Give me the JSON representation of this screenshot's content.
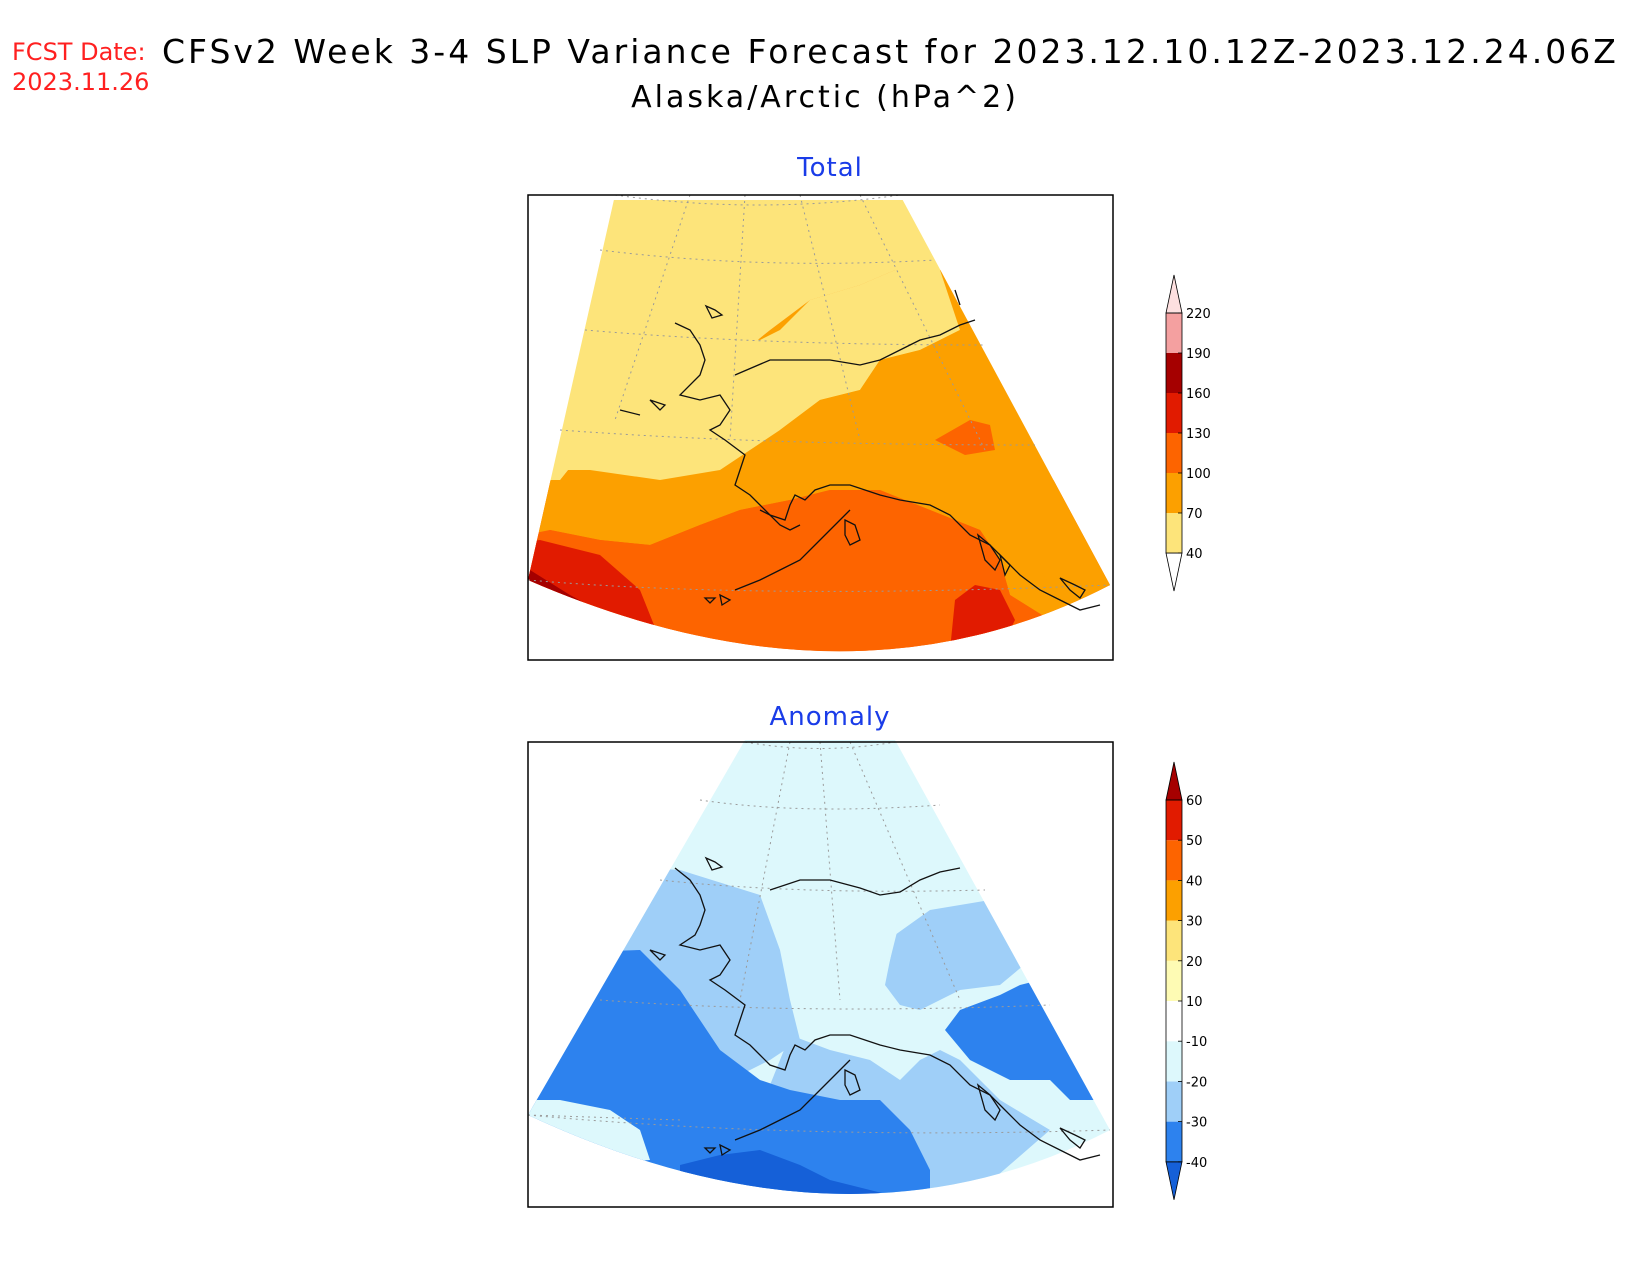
{
  "header": {
    "fcst_label": "FCST Date:",
    "fcst_date": "2023.11.26",
    "title": "CFSv2 Week 3-4 SLP Variance Forecast for 2023.12.10.12Z-2023.12.24.06Z",
    "subtitle": "Alaska/Arctic (hPa^2)"
  },
  "panels": {
    "total": {
      "title": "Total",
      "colorbar": {
        "labels": [
          "40",
          "70",
          "100",
          "130",
          "160",
          "190",
          "220"
        ],
        "colors": [
          "#ffffff",
          "#fde47a",
          "#fca000",
          "#fd6400",
          "#e11b00",
          "#a50000",
          "#f4a0a0",
          "#fde0e0"
        ]
      }
    },
    "anomaly": {
      "title": "Anomaly",
      "colorbar": {
        "labels": [
          "-40",
          "-30",
          "-20",
          "-10",
          "10",
          "20",
          "30",
          "40",
          "50",
          "60"
        ],
        "colors": [
          "#1560d8",
          "#2d82ee",
          "#9fcff8",
          "#ddf8fc",
          "#ffffff",
          "#fefbb4",
          "#fde47a",
          "#fca000",
          "#fd6400",
          "#e11b00",
          "#a50000"
        ]
      }
    }
  }
}
